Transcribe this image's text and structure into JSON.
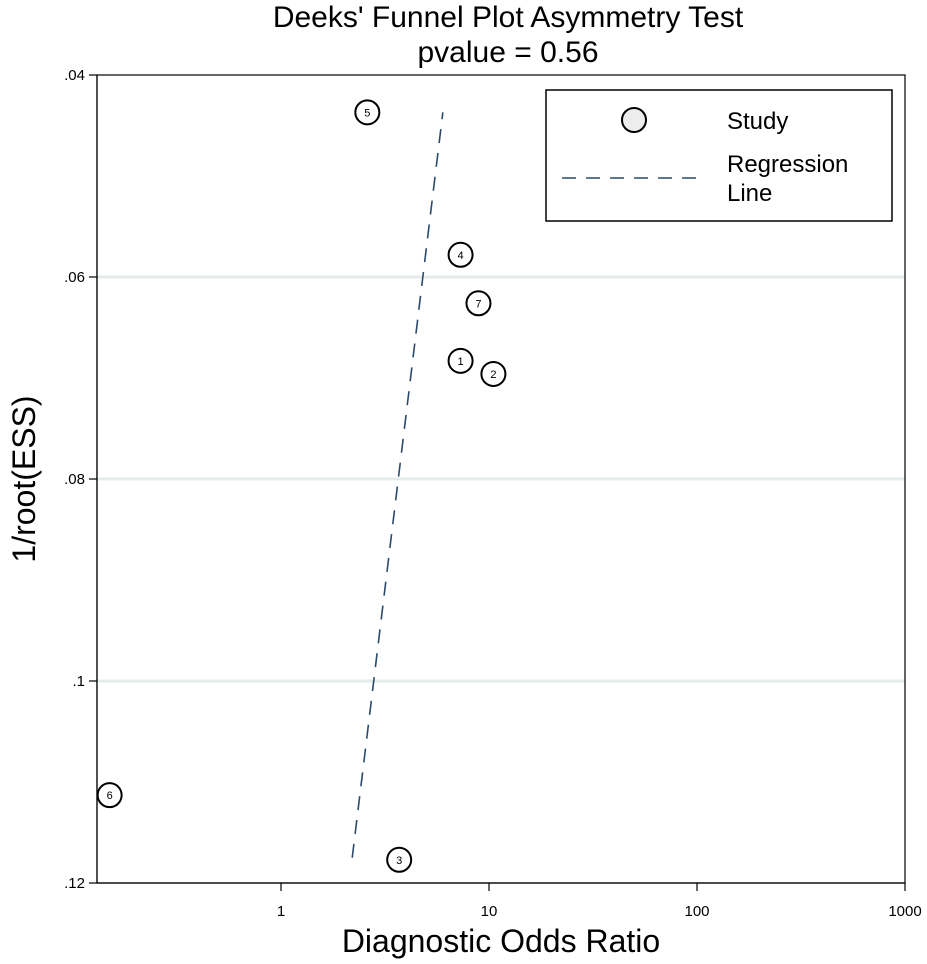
{
  "chart_data": {
    "type": "scatter",
    "title": "Deeks' Funnel Plot Asymmetry Test",
    "subtitle_label": "pvalue",
    "subtitle_value": "0.56",
    "xlabel": "Diagnostic Odds Ratio",
    "ylabel": "1/root(ESS)",
    "xscale": "log",
    "xlim": [
      0.15,
      1000
    ],
    "ylim": [
      0.12,
      0.04
    ],
    "y_axis_inverted": true,
    "x_ticks": [
      1,
      10,
      100,
      1000
    ],
    "x_tick_labels": [
      "1",
      "10",
      "100",
      "1000"
    ],
    "y_ticks": [
      0.04,
      0.06,
      0.08,
      0.1,
      0.12
    ],
    "y_tick_labels": [
      ".04",
      ".06",
      ".08",
      ".1",
      ".12"
    ],
    "grid": "horizontal",
    "legend_position": "top-right",
    "series": [
      {
        "name": "Study",
        "kind": "points",
        "points": [
          {
            "label": "1",
            "x": 7.3,
            "y": 0.0683
          },
          {
            "label": "2",
            "x": 10.5,
            "y": 0.0696
          },
          {
            "label": "3",
            "x": 3.7,
            "y": 0.1177
          },
          {
            "label": "4",
            "x": 7.3,
            "y": 0.0578
          },
          {
            "label": "5",
            "x": 2.6,
            "y": 0.0437
          },
          {
            "label": "6",
            "x": 0.15,
            "y": 0.1113
          },
          {
            "label": "7",
            "x": 8.9,
            "y": 0.0626
          }
        ]
      },
      {
        "name": "Regression Line",
        "kind": "line",
        "points": [
          {
            "x": 2.2,
            "y": 0.1175
          },
          {
            "x": 6.0,
            "y": 0.0437
          }
        ]
      }
    ],
    "legend": [
      "Study",
      "Regression",
      "Line"
    ],
    "colors": {
      "regression": "#2b4a6b",
      "marker_fill": "#ededed",
      "grid": "#e3ece8"
    }
  }
}
